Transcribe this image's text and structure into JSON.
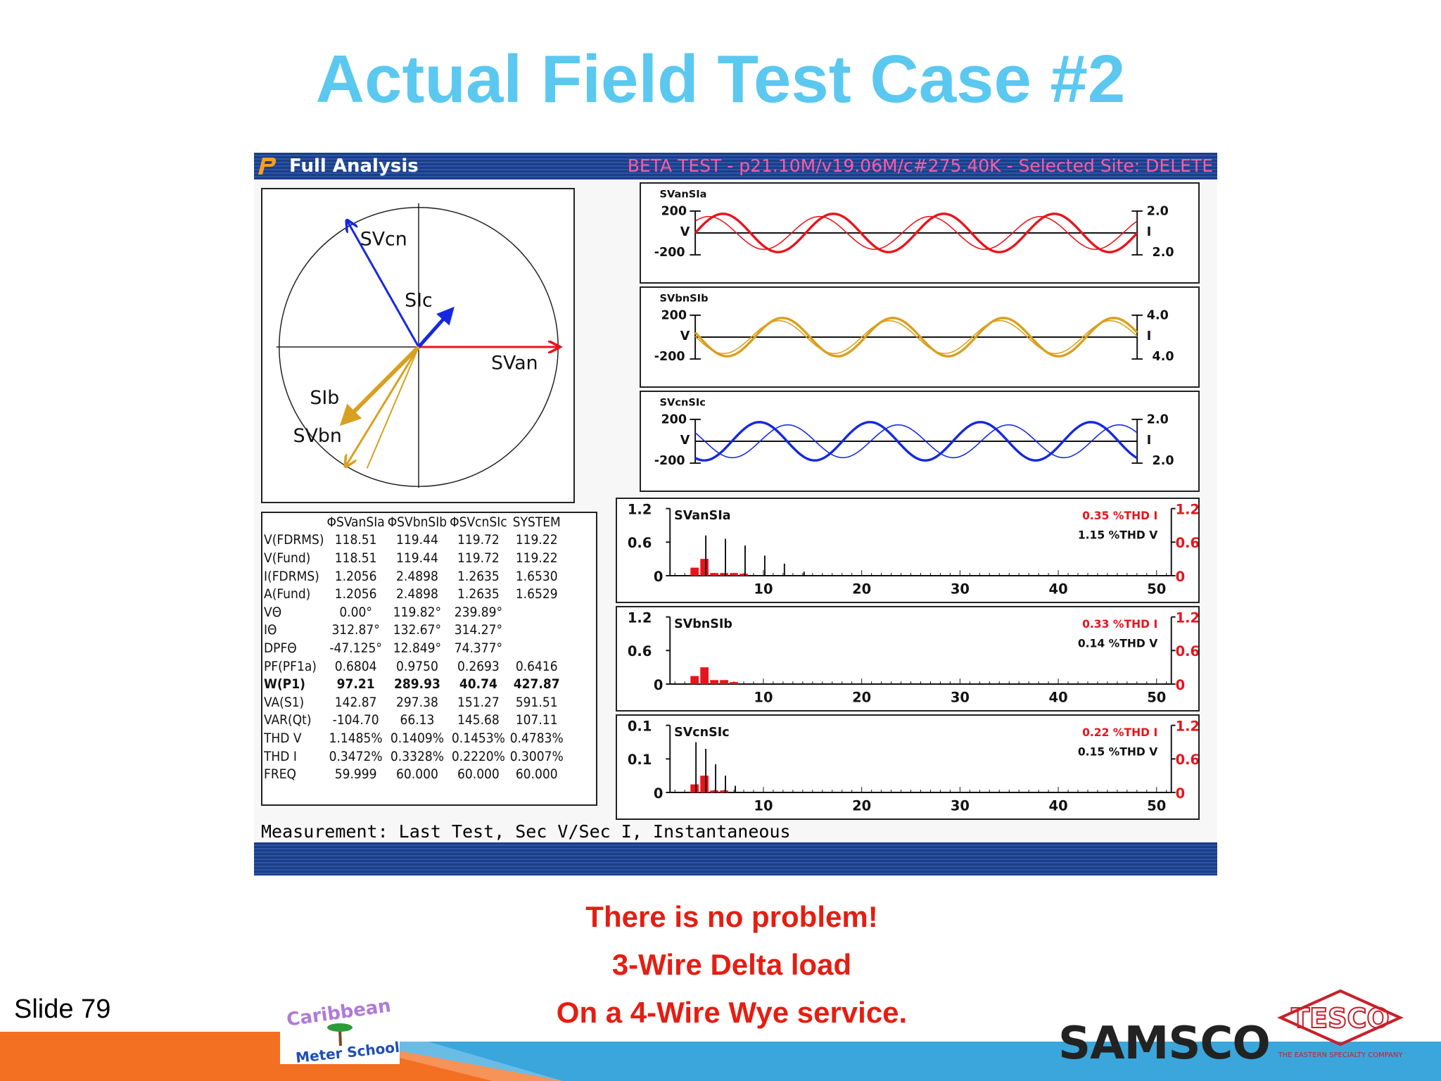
{
  "slide": {
    "title": "Actual Field Test Case #2",
    "number": "Slide 79",
    "captions": [
      "There is no problem!",
      "3-Wire Delta load",
      "On a 4-Wire Wye service."
    ],
    "logos": {
      "school": "Caribbean Meter School",
      "samsco": "SAMSCO",
      "tesco": "TESCO",
      "tesco_tagline": "THE EASTERN SPECIALTY COMPANY"
    }
  },
  "window": {
    "title": "Full Analysis",
    "status": "BETA TEST - p21.10M/v19.06M/c#275.40K - Selected Site: DELETE",
    "measurement": "Measurement: Last Test, Sec V/Sec I, Instantaneous"
  },
  "phasor": {
    "labels": {
      "svcn": "SVcn",
      "sic": "SIc",
      "svan": "SVan",
      "sib": "SIb",
      "svbn": "SVbn"
    }
  },
  "waveforms": [
    {
      "label": "SVanSIa",
      "v_top": "200",
      "v_mid": "V",
      "v_bot": "-200",
      "i_top": "2.0",
      "i_mid": "I",
      "i_bot": "2.0",
      "color": "#e8141c"
    },
    {
      "label": "SVbnSIb",
      "v_top": "200",
      "v_mid": "V",
      "v_bot": "-200",
      "i_top": "4.0",
      "i_mid": "I",
      "i_bot": "4.0",
      "color": "#d8a020"
    },
    {
      "label": "SVcnSIc",
      "v_top": "200",
      "v_mid": "V",
      "v_bot": "-200",
      "i_top": "2.0",
      "i_mid": "I",
      "i_bot": "2.0",
      "color": "#1428e0"
    }
  ],
  "harmonics": [
    {
      "label": "SVanSIa",
      "y_top": "1.2",
      "y_mid": "0.6",
      "y_bot": "0",
      "r_top": "1.2",
      "r_mid": "0.6",
      "r_bot": "0",
      "thd_i": "0.35 %THD I",
      "thd_v": "1.15 %THD V",
      "x_ticks": [
        "10",
        "20",
        "30",
        "40",
        "50"
      ]
    },
    {
      "label": "SVbnSIb",
      "y_top": "1.2",
      "y_mid": "0.6",
      "y_bot": "0",
      "r_top": "1.2",
      "r_mid": "0.6",
      "r_bot": "0",
      "thd_i": "0.33 %THD I",
      "thd_v": "0.14 %THD V",
      "x_ticks": [
        "10",
        "20",
        "30",
        "40",
        "50"
      ]
    },
    {
      "label": "SVcnSIc",
      "y_top": "0.1",
      "y_mid": "0.1",
      "y_bot": "0",
      "r_top": "1.2",
      "r_mid": "0.6",
      "r_bot": "0",
      "thd_i": "0.22 %THD I",
      "thd_v": "0.15 %THD V",
      "x_ticks": [
        "10",
        "20",
        "30",
        "40",
        "50"
      ]
    }
  ],
  "table": {
    "headers": [
      "",
      "ΦSVanSIa",
      "ΦSVbnSIb",
      "ΦSVcnSIc",
      "SYSTEM"
    ],
    "rows": [
      [
        "V(FDRMS)",
        "118.51",
        "119.44",
        "119.72",
        "119.22"
      ],
      [
        "V(Fund)",
        "118.51",
        "119.44",
        "119.72",
        "119.22"
      ],
      [
        "I(FDRMS)",
        "1.2056",
        "2.4898",
        "1.2635",
        "1.6530"
      ],
      [
        "A(Fund)",
        "1.2056",
        "2.4898",
        "1.2635",
        "1.6529"
      ],
      [
        "VΘ",
        "0.00°",
        "119.82°",
        "239.89°",
        ""
      ],
      [
        "IΘ",
        "312.87°",
        "132.67°",
        "314.27°",
        ""
      ],
      [
        "DPFΘ",
        "-47.125°",
        "12.849°",
        "74.377°",
        ""
      ],
      [
        "PF(PF1a)",
        "0.6804",
        "0.9750",
        "0.2693",
        "0.6416"
      ],
      [
        "W(P1)",
        "97.21",
        "289.93",
        "40.74",
        "427.87"
      ],
      [
        "VA(S1)",
        "142.87",
        "297.38",
        "151.27",
        "591.51"
      ],
      [
        "VAR(Qt)",
        "-104.70",
        "66.13",
        "145.68",
        "107.11"
      ],
      [
        "THD V",
        "1.1485%",
        "0.1409%",
        "0.1453%",
        "0.4783%"
      ],
      [
        "THD I",
        "0.3472%",
        "0.3328%",
        "0.2220%",
        "0.3007%"
      ],
      [
        "FREQ",
        "59.999",
        "60.000",
        "60.000",
        "60.000"
      ]
    ]
  }
}
